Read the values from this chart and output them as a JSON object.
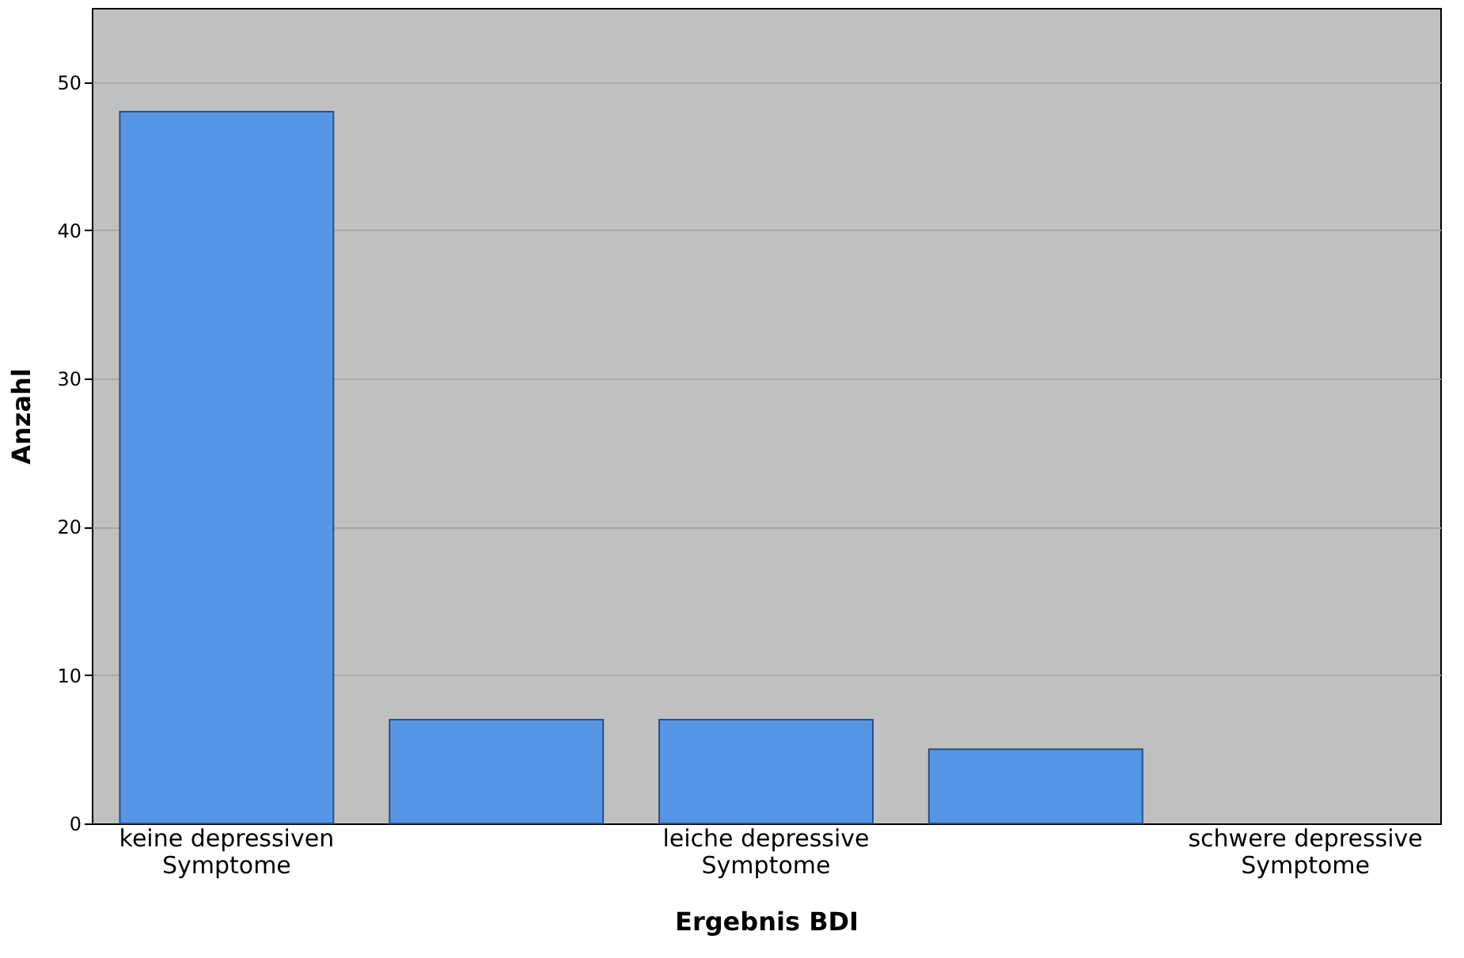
{
  "chart_data": {
    "type": "bar",
    "categories": [
      "keine depressiven Symptome",
      null,
      "leiche depressive Symptome",
      null,
      "schwere depressive Symptome"
    ],
    "values": [
      48,
      7,
      7,
      5,
      null
    ],
    "color": "#5597e6",
    "xlabel": "Ergebnis BDI",
    "ylabel": "Anzahl",
    "ylim": [
      0,
      55
    ],
    "yticks": [
      0,
      10,
      20,
      30,
      40,
      50
    ],
    "grid": "y"
  }
}
